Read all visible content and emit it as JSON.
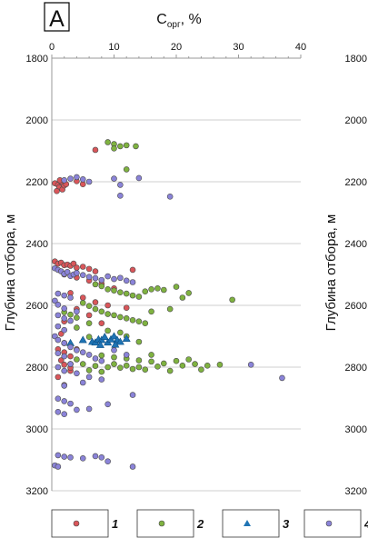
{
  "chart_data": {
    "type": "scatter",
    "panel_label": "А",
    "xlabel_main": "C",
    "xlabel_sub": "орг",
    "xlabel_unit": ", %",
    "ylabel": "Глубина отбора, м",
    "x_ticks": [
      "0",
      "10",
      "20",
      "30",
      "40"
    ],
    "y_ticks": [
      "1800",
      "2000",
      "2200",
      "2400",
      "2600",
      "2800",
      "3000",
      "3200"
    ],
    "right_axis_ticks": [
      "1800",
      "2000",
      "2200",
      "2400",
      "2600",
      "2800",
      "3000",
      "3200"
    ],
    "xlim": [
      0,
      40
    ],
    "ylim": [
      1800,
      3200
    ],
    "y_inverted": true,
    "x_axis_position": "top",
    "colors": {
      "1": "#d9565a",
      "2": "#7fb240",
      "3": "#1f74b4",
      "4": "#8a83d8",
      "border": "#4a4a4a"
    },
    "legend": [
      "1",
      "2",
      "3",
      "4"
    ],
    "series": [
      {
        "name": "1",
        "marker": "circle",
        "points": [
          [
            0.5,
            2205
          ],
          [
            1,
            2210
          ],
          [
            1.2,
            2218
          ],
          [
            1.5,
            2200
          ],
          [
            1.7,
            2225
          ],
          [
            2,
            2212
          ],
          [
            0.8,
            2230
          ],
          [
            2.3,
            2208
          ],
          [
            1.3,
            2195
          ],
          [
            4,
            2198
          ],
          [
            5,
            2208
          ],
          [
            7,
            2097
          ],
          [
            0.5,
            2458
          ],
          [
            1,
            2465
          ],
          [
            1.5,
            2462
          ],
          [
            2,
            2470
          ],
          [
            2.5,
            2468
          ],
          [
            3,
            2472
          ],
          [
            3.5,
            2465
          ],
          [
            4,
            2478
          ],
          [
            5,
            2475
          ],
          [
            6,
            2482
          ],
          [
            7,
            2490
          ],
          [
            13,
            2485
          ],
          [
            2,
            2500
          ],
          [
            4,
            2510
          ],
          [
            6,
            2520
          ],
          [
            8,
            2530
          ],
          [
            10,
            2545
          ],
          [
            3,
            2560
          ],
          [
            5,
            2575
          ],
          [
            7,
            2590
          ],
          [
            9,
            2600
          ],
          [
            4,
            2612
          ],
          [
            6,
            2632
          ],
          [
            12,
            2608
          ],
          [
            2,
            2652
          ],
          [
            8,
            2658
          ],
          [
            1,
            2742
          ],
          [
            2,
            2752
          ],
          [
            3,
            2765
          ],
          [
            1.5,
            2778
          ],
          [
            2,
            2792
          ],
          [
            3,
            2812
          ],
          [
            1,
            2832
          ],
          [
            2,
            2858
          ],
          [
            4,
            2742
          ],
          [
            3,
            2802
          ],
          [
            2,
            2722
          ],
          [
            1.5,
            2692
          ]
        ]
      },
      {
        "name": "2",
        "marker": "circle",
        "points": [
          [
            9,
            2072
          ],
          [
            10,
            2078
          ],
          [
            11,
            2085
          ],
          [
            12,
            2082
          ],
          [
            13.5,
            2085
          ],
          [
            10,
            2092
          ],
          [
            12,
            2160
          ],
          [
            7,
            2532
          ],
          [
            8,
            2538
          ],
          [
            9,
            2548
          ],
          [
            10,
            2552
          ],
          [
            11,
            2558
          ],
          [
            12,
            2562
          ],
          [
            13,
            2568
          ],
          [
            14,
            2572
          ],
          [
            15,
            2555
          ],
          [
            16,
            2548
          ],
          [
            17,
            2545
          ],
          [
            18,
            2550
          ],
          [
            20,
            2540
          ],
          [
            22,
            2560
          ],
          [
            21,
            2575
          ],
          [
            29,
            2582
          ],
          [
            5,
            2592
          ],
          [
            6,
            2602
          ],
          [
            7,
            2612
          ],
          [
            8,
            2620
          ],
          [
            9,
            2628
          ],
          [
            10,
            2632
          ],
          [
            11,
            2638
          ],
          [
            12,
            2642
          ],
          [
            13,
            2648
          ],
          [
            14,
            2652
          ],
          [
            15,
            2658
          ],
          [
            16,
            2620
          ],
          [
            19,
            2612
          ],
          [
            2,
            2622
          ],
          [
            3,
            2630
          ],
          [
            4,
            2640
          ],
          [
            6,
            2658
          ],
          [
            9,
            2682
          ],
          [
            11,
            2688
          ],
          [
            12,
            2700
          ],
          [
            14,
            2718
          ],
          [
            4,
            2672
          ],
          [
            6,
            2702
          ],
          [
            8,
            2762
          ],
          [
            10,
            2768
          ],
          [
            12,
            2772
          ],
          [
            14,
            2778
          ],
          [
            16,
            2782
          ],
          [
            18,
            2788
          ],
          [
            20,
            2780
          ],
          [
            22,
            2775
          ],
          [
            23,
            2790
          ],
          [
            25,
            2795
          ],
          [
            27,
            2792
          ],
          [
            24,
            2808
          ],
          [
            21,
            2795
          ],
          [
            5,
            2790
          ],
          [
            7,
            2796
          ],
          [
            9,
            2800
          ],
          [
            11,
            2802
          ],
          [
            13,
            2806
          ],
          [
            15,
            2808
          ],
          [
            17,
            2798
          ],
          [
            19,
            2812
          ],
          [
            4,
            2775
          ],
          [
            6,
            2810
          ],
          [
            8,
            2815
          ],
          [
            10,
            2790
          ],
          [
            12,
            2795
          ],
          [
            14,
            2800
          ],
          [
            3,
            2790
          ],
          [
            16,
            2760
          ]
        ]
      },
      {
        "name": "3",
        "marker": "triangle",
        "points": [
          [
            3,
            2722
          ],
          [
            5,
            2712
          ],
          [
            6.5,
            2718
          ],
          [
            7,
            2720
          ],
          [
            7.5,
            2710
          ],
          [
            8,
            2712
          ],
          [
            8.5,
            2702
          ],
          [
            9,
            2720
          ],
          [
            9.5,
            2710
          ],
          [
            10,
            2700
          ],
          [
            10.5,
            2712
          ],
          [
            11,
            2718
          ],
          [
            12,
            2708
          ],
          [
            7.8,
            2728
          ],
          [
            10.2,
            2727
          ]
        ]
      },
      {
        "name": "4",
        "marker": "circle",
        "points": [
          [
            2,
            2195
          ],
          [
            3,
            2190
          ],
          [
            4,
            2185
          ],
          [
            5,
            2192
          ],
          [
            6,
            2200
          ],
          [
            10,
            2190
          ],
          [
            11,
            2210
          ],
          [
            14,
            2188
          ],
          [
            11,
            2245
          ],
          [
            19,
            2248
          ],
          [
            0.5,
            2480
          ],
          [
            1,
            2485
          ],
          [
            1.5,
            2490
          ],
          [
            2,
            2498
          ],
          [
            2.5,
            2492
          ],
          [
            3,
            2505
          ],
          [
            3.5,
            2500
          ],
          [
            4,
            2495
          ],
          [
            5,
            2502
          ],
          [
            6,
            2508
          ],
          [
            7,
            2512
          ],
          [
            8,
            2518
          ],
          [
            9,
            2506
          ],
          [
            10,
            2515
          ],
          [
            11,
            2511
          ],
          [
            12,
            2520
          ],
          [
            13,
            2525
          ],
          [
            1,
            2562
          ],
          [
            2,
            2568
          ],
          [
            3,
            2575
          ],
          [
            0.5,
            2585
          ],
          [
            1,
            2598
          ],
          [
            2,
            2610
          ],
          [
            4,
            2620
          ],
          [
            1,
            2632
          ],
          [
            2,
            2642
          ],
          [
            3,
            2650
          ],
          [
            1,
            2668
          ],
          [
            2,
            2680
          ],
          [
            0.5,
            2700
          ],
          [
            1,
            2712
          ],
          [
            2,
            2722
          ],
          [
            3,
            2735
          ],
          [
            4,
            2745
          ],
          [
            1,
            2755
          ],
          [
            2,
            2765
          ],
          [
            5,
            2752
          ],
          [
            6,
            2760
          ],
          [
            7,
            2772
          ],
          [
            8,
            2780
          ],
          [
            3,
            2790
          ],
          [
            1,
            2800
          ],
          [
            2,
            2812
          ],
          [
            4,
            2820
          ],
          [
            6,
            2832
          ],
          [
            8,
            2840
          ],
          [
            5,
            2850
          ],
          [
            2,
            2860
          ],
          [
            10,
            2745
          ],
          [
            12,
            2760
          ],
          [
            32,
            2792
          ],
          [
            37,
            2835
          ],
          [
            1,
            2902
          ],
          [
            2,
            2910
          ],
          [
            3,
            2918
          ],
          [
            9,
            2920
          ],
          [
            13,
            2890
          ],
          [
            6,
            2935
          ],
          [
            1,
            2945
          ],
          [
            2,
            2952
          ],
          [
            4,
            2938
          ],
          [
            1,
            3085
          ],
          [
            2,
            3090
          ],
          [
            3,
            3092
          ],
          [
            5,
            3095
          ],
          [
            7,
            3088
          ],
          [
            8,
            3092
          ],
          [
            9,
            3105
          ],
          [
            13,
            3122
          ],
          [
            0.5,
            3118
          ],
          [
            1,
            3122
          ]
        ]
      }
    ]
  }
}
